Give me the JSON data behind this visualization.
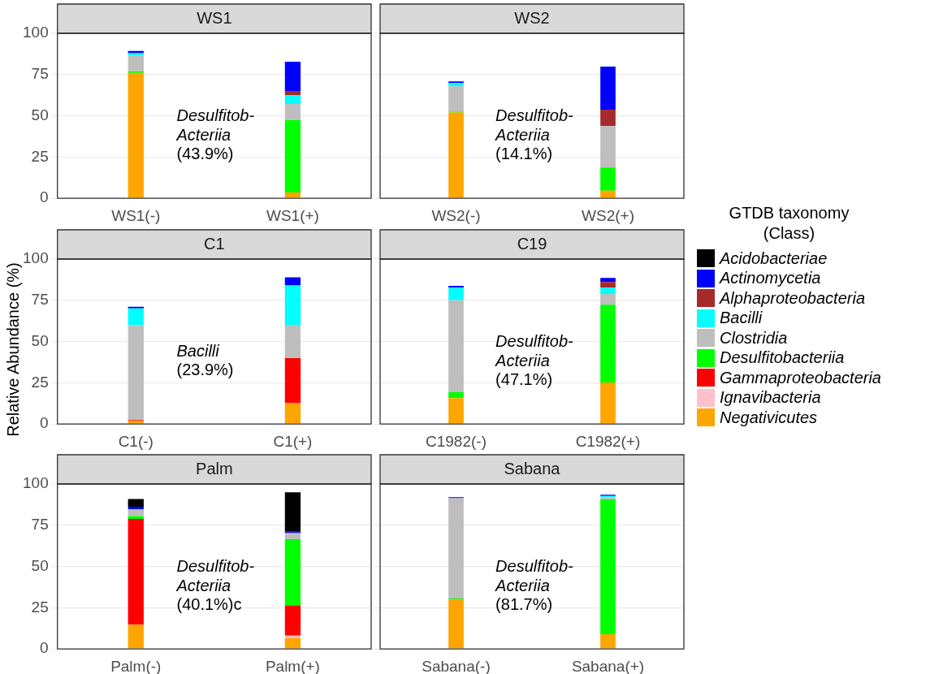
{
  "chart_data": [
    {
      "type": "bar",
      "title": "WS1",
      "stacked": true,
      "categories": [
        "WS1(-)",
        "WS1(+)"
      ],
      "ylim": [
        0,
        100
      ],
      "yticks": [
        0,
        25,
        50,
        75,
        100
      ],
      "grid": "y",
      "ylabel": "Relative Abundance (%)",
      "legend": "right",
      "legend_title": "GTDB taxonomy\n(Class)",
      "annotations": [
        "Desulfitob-\nActeriia\n(43.9%)"
      ],
      "series": [
        {
          "name": "Negativicutes",
          "color": "#ffa500",
          "values": [
            76,
            3.6
          ]
        },
        {
          "name": "Ignavibacteria",
          "color": "#ffc0cb",
          "values": [
            0,
            0
          ]
        },
        {
          "name": "Gammaproteobacteria",
          "color": "#ff0000",
          "values": [
            0,
            0
          ]
        },
        {
          "name": "Desulfitobacteriia",
          "color": "#00ff00",
          "values": [
            1,
            43.9
          ]
        },
        {
          "name": "Clostridia",
          "color": "#bebebe",
          "values": [
            9.6,
            9.7
          ]
        },
        {
          "name": "Bacilli",
          "color": "#00ffff",
          "values": [
            1.3,
            5.4
          ]
        },
        {
          "name": "Alphaproteobacteria",
          "color": "#a52a2a",
          "values": [
            0,
            2.5
          ]
        },
        {
          "name": "Actinomycetia",
          "color": "#0000ff",
          "values": [
            1.4,
            17.7
          ]
        },
        {
          "name": "Acidobacteriae",
          "color": "#000000",
          "values": [
            0,
            0
          ]
        }
      ]
    },
    {
      "type": "bar",
      "title": "WS2",
      "stacked": true,
      "categories": [
        "WS2(-)",
        "WS2(+)"
      ],
      "ylim": [
        0,
        100
      ],
      "yticks": [
        0,
        25,
        50,
        75,
        100
      ],
      "grid": "y",
      "tick_labels": "x",
      "annotations": [
        "Desulfitob-\nActeriia\n(14.1%)"
      ],
      "series": [
        {
          "color": "#ffa500",
          "values": [
            52,
            4.6
          ]
        },
        {
          "color": "#ffc0cb",
          "values": [
            0,
            0
          ]
        },
        {
          "color": "#ff0000",
          "values": [
            0,
            0
          ]
        },
        {
          "color": "#00ff00",
          "values": [
            0.5,
            14.1
          ]
        },
        {
          "color": "#bebebe",
          "values": [
            15.4,
            25.2
          ]
        },
        {
          "color": "#00ffff",
          "values": [
            1.9,
            0
          ]
        },
        {
          "color": "#a52a2a",
          "values": [
            0,
            9.9
          ]
        },
        {
          "color": "#0000ff",
          "values": [
            1,
            26
          ]
        },
        {
          "color": "#000000",
          "values": [
            0,
            0
          ]
        }
      ]
    },
    {
      "type": "bar",
      "title": "C1",
      "stacked": true,
      "categories": [
        "C1(-)",
        "C1(+)"
      ],
      "ylim": [
        0,
        100
      ],
      "yticks": [
        0,
        25,
        50,
        75,
        100
      ],
      "grid": "y",
      "annotations": [
        "Bacilli\n(23.9%)"
      ],
      "series": [
        {
          "color": "#ffa500",
          "values": [
            2.1,
            12.6
          ]
        },
        {
          "color": "#ffc0cb",
          "values": [
            0,
            0
          ]
        },
        {
          "color": "#ff0000",
          "values": [
            0.3,
            27.4
          ]
        },
        {
          "color": "#00ff00",
          "values": [
            0,
            0
          ]
        },
        {
          "color": "#bebebe",
          "values": [
            57.6,
            20.1
          ]
        },
        {
          "color": "#00ffff",
          "values": [
            10.1,
            23.9
          ]
        },
        {
          "color": "#a52a2a",
          "values": [
            null,
            0
          ]
        },
        {
          "color": "#0000ff",
          "values": [
            1,
            4.9
          ]
        },
        {
          "color": "#000000",
          "values": [
            0,
            0
          ]
        }
      ]
    },
    {
      "type": "bar",
      "title": "C19",
      "stacked": true,
      "categories": [
        "C1982(-)",
        "C1982(+)"
      ],
      "ylim": [
        0,
        100
      ],
      "yticks": [
        0,
        25,
        50,
        75,
        100
      ],
      "grid": "y",
      "tick_labels": "x",
      "annotations": [
        "Desulfitob-\nActeriia\n(47.1%)"
      ],
      "series": [
        {
          "color": "#ffa500",
          "values": [
            15.7,
            25.2
          ]
        },
        {
          "color": "#ffc0cb",
          "values": [
            0,
            0
          ]
        },
        {
          "color": "#ff0000",
          "values": [
            0,
            0
          ]
        },
        {
          "color": "#00ff00",
          "values": [
            3.6,
            47.1
          ]
        },
        {
          "color": "#bebebe",
          "values": [
            55.7,
            6.5
          ]
        },
        {
          "color": "#00ffff",
          "values": [
            7.7,
            3.9
          ]
        },
        {
          "color": "#a52a2a",
          "values": [
            0,
            3.4
          ]
        },
        {
          "color": "#0000ff",
          "values": [
            1,
            2.5
          ]
        },
        {
          "color": "#000000",
          "values": [
            0,
            0
          ]
        }
      ]
    },
    {
      "type": "bar",
      "title": "Palm",
      "stacked": true,
      "categories": [
        "Palm(-)",
        "Palm(+)"
      ],
      "ylim": [
        0,
        100
      ],
      "yticks": [
        0,
        25,
        50,
        75,
        100
      ],
      "grid": "y",
      "annotations": [
        "Desulfitob-\nActeriia\n(40.1%)c"
      ],
      "series": [
        {
          "color": "#ffa500",
          "values": [
            14.7,
            6.8
          ]
        },
        {
          "color": "#ffc0cb",
          "values": [
            0,
            1.3
          ]
        },
        {
          "color": "#ff0000",
          "values": [
            64.1,
            18.3
          ]
        },
        {
          "color": "#00ff00",
          "values": [
            1.7,
            40.1
          ]
        },
        {
          "color": "#bebebe",
          "values": [
            4.2,
            3.7
          ]
        },
        {
          "color": "#00ffff",
          "values": [
            0,
            null
          ]
        },
        {
          "color": "#a52a2a",
          "values": [
            0,
            0
          ]
        },
        {
          "color": "#0000ff",
          "values": [
            1.5,
            0.9
          ]
        },
        {
          "color": "#000000",
          "values": [
            4.7,
            23.8
          ]
        }
      ]
    },
    {
      "type": "bar",
      "title": "Sabana",
      "stacked": true,
      "categories": [
        "Sabana(-)",
        "Sabana(+)"
      ],
      "ylim": [
        0,
        100
      ],
      "yticks": [
        0,
        25,
        50,
        75,
        100
      ],
      "grid": "y",
      "tick_labels": "x",
      "annotations": [
        "Desulfitob-\nActeriia\n(81.7%)"
      ],
      "series": [
        {
          "color": "#ffa500",
          "values": [
            30,
            9
          ]
        },
        {
          "color": "#ffc0cb",
          "values": [
            0,
            0
          ]
        },
        {
          "color": "#ff0000",
          "values": [
            0,
            0
          ]
        },
        {
          "color": "#00ff00",
          "values": [
            0.6,
            81.7
          ]
        },
        {
          "color": "#bebebe",
          "values": [
            60.8,
            1.3
          ]
        },
        {
          "color": "#00ffff",
          "values": [
            0,
            0.7
          ]
        },
        {
          "color": "#a52a2a",
          "values": [
            0,
            0
          ]
        },
        {
          "color": "#0000ff",
          "values": [
            0.6,
            0.8
          ]
        },
        {
          "color": "#000000",
          "values": [
            0,
            0
          ]
        }
      ]
    }
  ]
}
